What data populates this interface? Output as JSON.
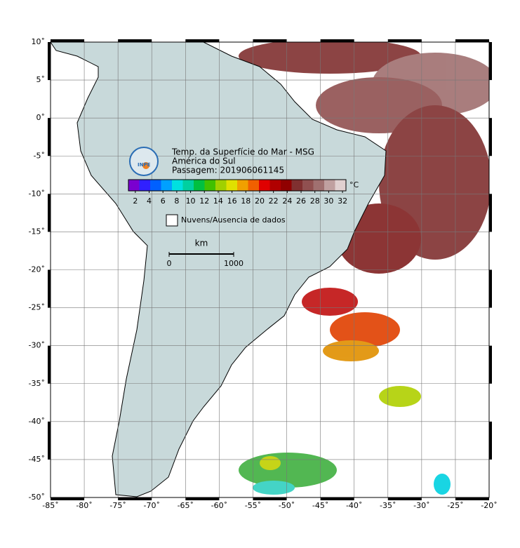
{
  "title_lines": [
    "Temp. da Superfície do Mar - MSG",
    "América do Sul",
    "Passagem: 201906061145"
  ],
  "logo": "INPE",
  "colorbar": {
    "unit": "°C",
    "clim": [
      1,
      32.5
    ],
    "ticks": [
      2,
      4,
      6,
      8,
      10,
      12,
      14,
      16,
      18,
      20,
      22,
      24,
      26,
      28,
      30,
      32
    ],
    "colors": [
      "#7a00d0",
      "#3020ff",
      "#0060ff",
      "#00a0ff",
      "#00e0e0",
      "#00d0a0",
      "#00c040",
      "#40c000",
      "#a0d000",
      "#e0e000",
      "#f0a000",
      "#f06000",
      "#e00000",
      "#b00000",
      "#900000",
      "#803030",
      "#905050",
      "#a07070",
      "#c0a0a0",
      "#e0d0d0"
    ]
  },
  "legend": {
    "label": "Nuvens/Ausencia de dados"
  },
  "scale_bar": {
    "title": "km",
    "ticks": [
      0,
      1000
    ]
  },
  "map": {
    "lon_lim": [
      -85,
      -20
    ],
    "lat_lim": [
      -50,
      10
    ],
    "grid": true,
    "lon_ticks": [
      {
        "value": -85,
        "label": "-85˚"
      },
      {
        "value": -80,
        "label": "-80˚"
      },
      {
        "value": -75,
        "label": "-75˚"
      },
      {
        "value": -70,
        "label": "-70˚"
      },
      {
        "value": -65,
        "label": "-65˚"
      },
      {
        "value": -60,
        "label": "-60˚"
      },
      {
        "value": -55,
        "label": "-55˚"
      },
      {
        "value": -50,
        "label": "-50˚"
      },
      {
        "value": -45,
        "label": "-45˚"
      },
      {
        "value": -40,
        "label": "-40˚"
      },
      {
        "value": -35,
        "label": "-35˚"
      },
      {
        "value": -30,
        "label": "-30˚"
      },
      {
        "value": -25,
        "label": "-25˚"
      },
      {
        "value": -20,
        "label": "-20˚"
      }
    ],
    "lat_ticks": [
      {
        "value": 10,
        "label": "10˚"
      },
      {
        "value": 5,
        "label": "5˚"
      },
      {
        "value": 0,
        "label": "0˚"
      },
      {
        "value": -5,
        "label": "-5˚"
      },
      {
        "value": -10,
        "label": "-10˚"
      },
      {
        "value": -15,
        "label": "-15˚"
      },
      {
        "value": -20,
        "label": "-20˚"
      },
      {
        "value": -25,
        "label": "-25˚"
      },
      {
        "value": -30,
        "label": "-30˚"
      },
      {
        "value": -35,
        "label": "-35˚"
      },
      {
        "value": -40,
        "label": "-40˚"
      },
      {
        "value": -45,
        "label": "-45˚"
      },
      {
        "value": -50,
        "label": "-50˚"
      }
    ]
  }
}
